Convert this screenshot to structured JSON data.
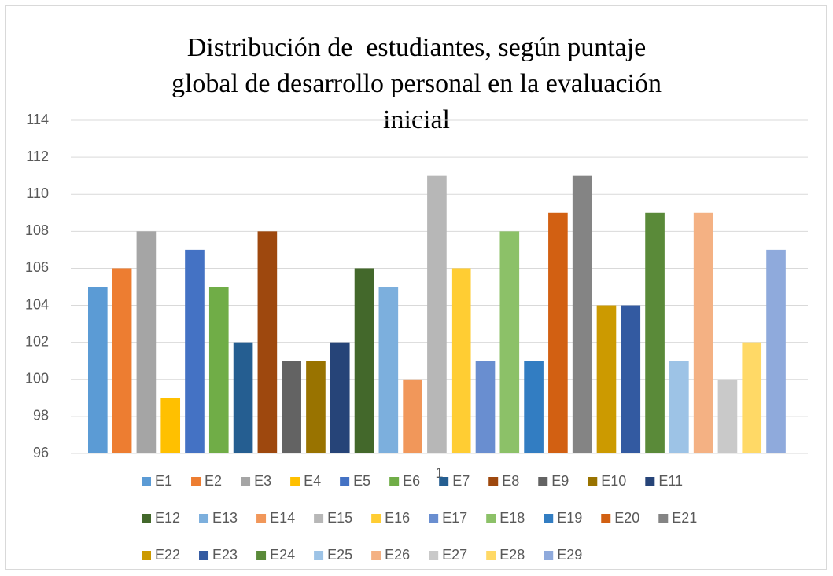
{
  "chart_data": {
    "type": "bar",
    "title": "Distribución de  estudiantes, según puntaje global de desarrollo personal en la evaluación inicial",
    "categories": [
      "1"
    ],
    "ylim": [
      96,
      114
    ],
    "yticks": [
      96,
      98,
      100,
      102,
      104,
      106,
      108,
      110,
      112,
      114
    ],
    "grid": true,
    "series": [
      {
        "name": "E1",
        "color": "#5b9bd5",
        "values": [
          105
        ]
      },
      {
        "name": "E2",
        "color": "#ed7d31",
        "values": [
          106
        ]
      },
      {
        "name": "E3",
        "color": "#a5a5a5",
        "values": [
          108
        ]
      },
      {
        "name": "E4",
        "color": "#ffc000",
        "values": [
          99
        ]
      },
      {
        "name": "E5",
        "color": "#4472c4",
        "values": [
          107
        ]
      },
      {
        "name": "E6",
        "color": "#70ad47",
        "values": [
          105
        ]
      },
      {
        "name": "E7",
        "color": "#255e91",
        "values": [
          102
        ]
      },
      {
        "name": "E8",
        "color": "#9e480e",
        "values": [
          108
        ]
      },
      {
        "name": "E9",
        "color": "#636363",
        "values": [
          101
        ]
      },
      {
        "name": "E10",
        "color": "#997300",
        "values": [
          101
        ]
      },
      {
        "name": "E11",
        "color": "#264478",
        "values": [
          102
        ]
      },
      {
        "name": "E12",
        "color": "#43682b",
        "values": [
          106
        ]
      },
      {
        "name": "E13",
        "color": "#7cafdd",
        "values": [
          105
        ]
      },
      {
        "name": "E14",
        "color": "#f1975a",
        "values": [
          100
        ]
      },
      {
        "name": "E15",
        "color": "#b7b7b7",
        "values": [
          111
        ]
      },
      {
        "name": "E16",
        "color": "#ffcd33",
        "values": [
          106
        ]
      },
      {
        "name": "E17",
        "color": "#698ed0",
        "values": [
          101
        ]
      },
      {
        "name": "E18",
        "color": "#8cc168",
        "values": [
          108
        ]
      },
      {
        "name": "E19",
        "color": "#327dc2",
        "values": [
          101
        ]
      },
      {
        "name": "E20",
        "color": "#d26012",
        "values": [
          109
        ]
      },
      {
        "name": "E21",
        "color": "#848484",
        "values": [
          111
        ]
      },
      {
        "name": "E22",
        "color": "#cc9a00",
        "values": [
          104
        ]
      },
      {
        "name": "E23",
        "color": "#335aa1",
        "values": [
          104
        ]
      },
      {
        "name": "E24",
        "color": "#5a8a39",
        "values": [
          109
        ]
      },
      {
        "name": "E25",
        "color": "#9dc3e6",
        "values": [
          101
        ]
      },
      {
        "name": "E26",
        "color": "#f4b183",
        "values": [
          109
        ]
      },
      {
        "name": "E27",
        "color": "#c9c9c9",
        "values": [
          100
        ]
      },
      {
        "name": "E28",
        "color": "#ffd966",
        "values": [
          102
        ]
      },
      {
        "name": "E29",
        "color": "#8faadc",
        "values": [
          107
        ]
      }
    ]
  }
}
